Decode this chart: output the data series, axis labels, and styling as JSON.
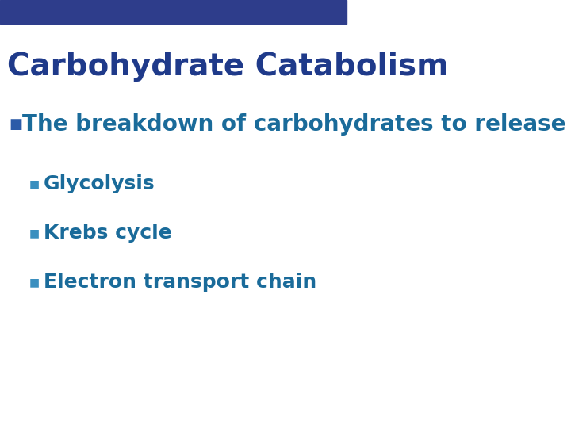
{
  "title": "Carbohydrate Catabolism",
  "title_color": "#1F3A8A",
  "title_fontsize": 28,
  "header_bar_color": "#2E3D8B",
  "header_bar_height": 0.055,
  "background_color": "#FFFFFF",
  "bullet1_text": "The breakdown of carbohydrates to release energy",
  "bullet1_color": "#1A6B9A",
  "bullet1_fontsize": 20,
  "bullet1_marker_color": "#2B5BA8",
  "sub_bullets": [
    "Glycolysis",
    "Krebs cycle",
    "Electron transport chain"
  ],
  "sub_bullet_color": "#1A6B9A",
  "sub_bullet_fontsize": 18,
  "sub_bullet_marker_color": "#3A8FBF"
}
